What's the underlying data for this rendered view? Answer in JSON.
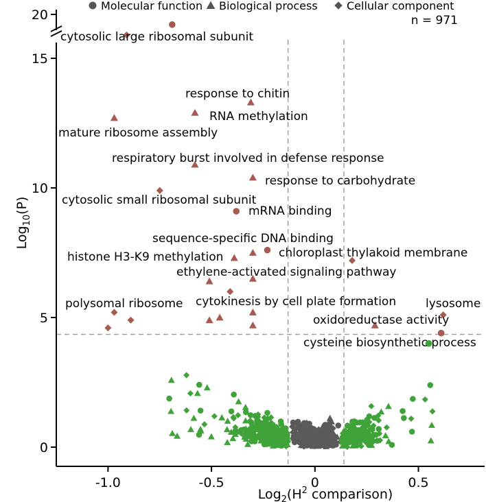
{
  "chart_data": {
    "type": "scatter",
    "title": "",
    "sample_size_label": "n = 971",
    "xlabel": "Log2(H2 comparison)",
    "ylabel": "Log10(P)",
    "xlim": [
      -1.25,
      0.82
    ],
    "ylim": [
      -0.8,
      20.5
    ],
    "axis_break": {
      "from": 15.5,
      "to": 19.3
    },
    "x_ticks": [
      {
        "value": -1.0,
        "label": "-1.0"
      },
      {
        "value": -0.5,
        "label": "-0.5"
      },
      {
        "value": 0.0,
        "label": "0"
      },
      {
        "value": 0.5,
        "label": "0.5"
      }
    ],
    "y_ticks": [
      {
        "value": 0,
        "label": "0",
        "plot_y": 0
      },
      {
        "value": 5,
        "label": "5",
        "plot_y": 5
      },
      {
        "value": 10,
        "label": "10",
        "plot_y": 10
      },
      {
        "value": 15,
        "label": "15",
        "plot_y": 15
      },
      {
        "value": 20,
        "label": "20",
        "plot_y": 20
      }
    ],
    "thresholds": {
      "vertical": [
        -0.13,
        0.14
      ],
      "horizontal": 4.35
    },
    "colors": {
      "significant": "#a65a52",
      "changed": "#3fa33a",
      "background": "#5a5a5a",
      "threshold": "#999999"
    },
    "legend": [
      {
        "shape": "circle",
        "label": "Molecular function"
      },
      {
        "shape": "triangle",
        "label": "Biological process"
      },
      {
        "shape": "diamond",
        "label": "Cellular component"
      }
    ],
    "significant_terms": [
      {
        "label": "cytosolic large ribosomal subunit",
        "x": -0.91,
        "y": 19.1,
        "shape": "diamond"
      },
      {
        "label": "",
        "x": -0.69,
        "y": 19.7,
        "shape": "circle"
      },
      {
        "label": "response to chitin",
        "x": -0.31,
        "y": 13.3,
        "shape": "triangle"
      },
      {
        "label": "RNA methylation",
        "x": -0.58,
        "y": 12.9,
        "shape": "triangle"
      },
      {
        "label": "mature ribosome assembly",
        "x": -0.97,
        "y": 12.7,
        "shape": "triangle"
      },
      {
        "label": "respiratory burst involved in defense response",
        "x": -0.58,
        "y": 10.9,
        "shape": "triangle"
      },
      {
        "label": "response to carbohydrate",
        "x": -0.3,
        "y": 10.4,
        "shape": "triangle"
      },
      {
        "label": "cytosolic small ribosomal subunit",
        "x": -0.75,
        "y": 9.9,
        "shape": "diamond"
      },
      {
        "label": "mRNA binding",
        "x": -0.38,
        "y": 9.1,
        "shape": "circle"
      },
      {
        "label": "sequence-specific DNA binding",
        "x": -0.3,
        "y": 7.5,
        "shape": "triangle"
      },
      {
        "label": "chloroplast thylakoid membrane",
        "x": -0.23,
        "y": 7.6,
        "shape": "circle"
      },
      {
        "label": "histone H3-K9 methylation",
        "x": -0.39,
        "y": 7.3,
        "shape": "triangle"
      },
      {
        "label": "ethylene-activated signaling pathway",
        "x": -0.3,
        "y": 6.5,
        "shape": "triangle"
      },
      {
        "label": "",
        "x": -0.51,
        "y": 6.4,
        "shape": "triangle"
      },
      {
        "label": "",
        "x": -0.41,
        "y": 6.0,
        "shape": "diamond"
      },
      {
        "label": "",
        "x": 0.18,
        "y": 7.2,
        "shape": "diamond"
      },
      {
        "label": "cytokinesis by cell plate formation",
        "x": -0.3,
        "y": 5.2,
        "shape": "triangle"
      },
      {
        "label": "polysomal ribosome",
        "x": -0.97,
        "y": 5.2,
        "shape": "diamond"
      },
      {
        "label": "",
        "x": -0.89,
        "y": 4.9,
        "shape": "diamond"
      },
      {
        "label": "",
        "x": -1.0,
        "y": 4.6,
        "shape": "diamond"
      },
      {
        "label": "",
        "x": -0.51,
        "y": 4.9,
        "shape": "triangle"
      },
      {
        "label": "",
        "x": -0.46,
        "y": 5.0,
        "shape": "triangle"
      },
      {
        "label": "",
        "x": -0.3,
        "y": 4.7,
        "shape": "triangle"
      },
      {
        "label": "lysosome",
        "x": 0.62,
        "y": 5.1,
        "shape": "diamond"
      },
      {
        "label": "oxidoreductase activity",
        "x": 0.29,
        "y": 4.7,
        "shape": "triangle"
      },
      {
        "label": "cysteine biosynthetic process",
        "x": 0.61,
        "y": 4.4,
        "shape": "circle"
      }
    ]
  }
}
